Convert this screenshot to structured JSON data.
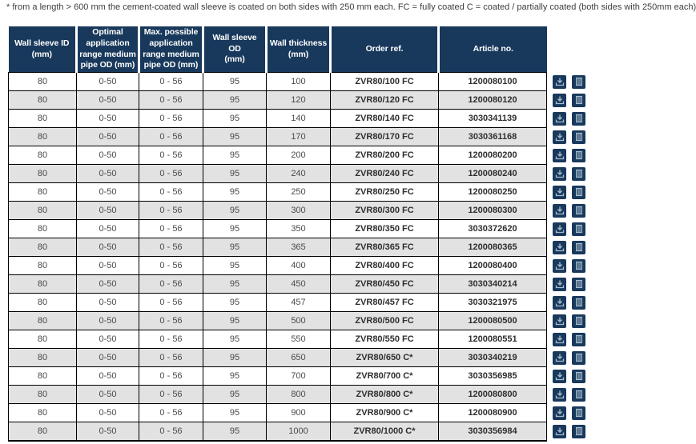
{
  "note": "* from a length > 600 mm the cement-coated wall sleeve is coated on both sides with 250 mm each. FC = fully coated C = coated / partially coated (both sides with 250mm each)",
  "colors": {
    "header_bg": "#18395c",
    "row_alt_bg": "#e2e2e2",
    "border": "#000000",
    "icon_button_bg": "#18395c",
    "icon_glyph": "#a8bbcd"
  },
  "table": {
    "columns": [
      "Wall sleeve ID\n(mm)",
      "Optimal\napplication\nrange medium\npipe OD (mm)",
      "Max. possible\napplication\nrange medium\npipe OD (mm)",
      "Wall sleeve OD\n(mm)",
      "Wall thickness\n(mm)",
      "Order ref.",
      "Article no."
    ],
    "rows": [
      [
        "80",
        "0-50",
        "0 - 56",
        "95",
        "100",
        "ZVR80/100 FC",
        "1200080100"
      ],
      [
        "80",
        "0-50",
        "0 - 56",
        "95",
        "120",
        "ZVR80/120 FC",
        "1200080120"
      ],
      [
        "80",
        "0-50",
        "0 - 56",
        "95",
        "140",
        "ZVR80/140 FC",
        "3030341139"
      ],
      [
        "80",
        "0-50",
        "0 - 56",
        "95",
        "170",
        "ZVR80/170 FC",
        "3030361168"
      ],
      [
        "80",
        "0-50",
        "0 - 56",
        "95",
        "200",
        "ZVR80/200 FC",
        "1200080200"
      ],
      [
        "80",
        "0-50",
        "0 - 56",
        "95",
        "240",
        "ZVR80/240 FC",
        "1200080240"
      ],
      [
        "80",
        "0-50",
        "0 - 56",
        "95",
        "250",
        "ZVR80/250 FC",
        "1200080250"
      ],
      [
        "80",
        "0-50",
        "0 - 56",
        "95",
        "300",
        "ZVR80/300 FC",
        "1200080300"
      ],
      [
        "80",
        "0-50",
        "0 - 56",
        "95",
        "350",
        "ZVR80/350 FC",
        "3030372620"
      ],
      [
        "80",
        "0-50",
        "0 - 56",
        "95",
        "365",
        "ZVR80/365 FC",
        "1200080365"
      ],
      [
        "80",
        "0-50",
        "0 - 56",
        "95",
        "400",
        "ZVR80/400 FC",
        "1200080400"
      ],
      [
        "80",
        "0-50",
        "0 - 56",
        "95",
        "450",
        "ZVR80/450 FC",
        "3030340214"
      ],
      [
        "80",
        "0-50",
        "0 - 56",
        "95",
        "457",
        "ZVR80/457 FC",
        "3030321975"
      ],
      [
        "80",
        "0-50",
        "0 - 56",
        "95",
        "500",
        "ZVR80/500 FC",
        "1200080500"
      ],
      [
        "80",
        "0-50",
        "0 - 56",
        "95",
        "550",
        "ZVR80/550 FC",
        "1200080551"
      ],
      [
        "80",
        "0-50",
        "0 - 56",
        "95",
        "650",
        "ZVR80/650 C*",
        "3030340219"
      ],
      [
        "80",
        "0-50",
        "0 - 56",
        "95",
        "700",
        "ZVR80/700 C*",
        "3030356985"
      ],
      [
        "80",
        "0-50",
        "0 - 56",
        "95",
        "800",
        "ZVR80/800 C*",
        "1200080800"
      ],
      [
        "80",
        "0-50",
        "0 - 56",
        "95",
        "900",
        "ZVR80/900 C*",
        "1200080900"
      ],
      [
        "80",
        "0-50",
        "0 - 56",
        "95",
        "1000",
        "ZVR80/1000 C*",
        "3030356984"
      ]
    ],
    "bold_column_indices": [
      5,
      6
    ],
    "row_actions": [
      {
        "icon": "download-icon"
      },
      {
        "icon": "book-icon"
      }
    ]
  }
}
